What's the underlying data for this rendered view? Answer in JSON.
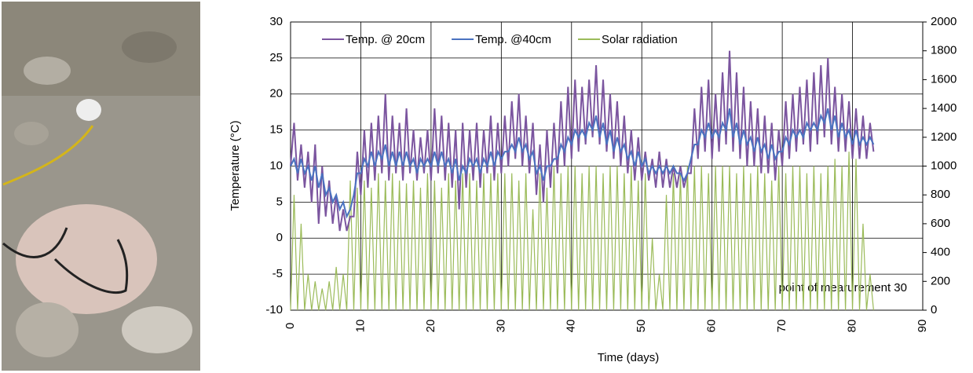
{
  "chart_data": {
    "type": "line",
    "xlabel": "Time (days)",
    "ylabel": "Temperature (°C)",
    "annotation": "point of mearurement 30",
    "xlim": [
      0,
      90
    ],
    "xticks": [
      0,
      10,
      20,
      30,
      40,
      50,
      60,
      70,
      80,
      90
    ],
    "ylim": [
      -10,
      30
    ],
    "yticks": [
      -10,
      -5,
      0,
      5,
      10,
      15,
      20,
      25,
      30
    ],
    "y2lim": [
      0,
      2000
    ],
    "y2ticks": [
      0,
      200,
      400,
      600,
      800,
      1000,
      1200,
      1400,
      1600,
      1800,
      2000
    ],
    "grid": true,
    "legend": "upper left",
    "x": [
      0,
      0.5,
      1,
      1.5,
      2,
      2.5,
      3,
      3.5,
      4,
      4.5,
      5,
      5.5,
      6,
      6.5,
      7,
      7.5,
      8,
      8.5,
      9,
      9.5,
      10,
      10.5,
      11,
      11.5,
      12,
      12.5,
      13,
      13.5,
      14,
      14.5,
      15,
      15.5,
      16,
      16.5,
      17,
      17.5,
      18,
      18.5,
      19,
      19.5,
      20,
      20.5,
      21,
      21.5,
      22,
      22.5,
      23,
      23.5,
      24,
      24.5,
      25,
      25.5,
      26,
      26.5,
      27,
      27.5,
      28,
      28.5,
      29,
      29.5,
      30,
      30.5,
      31,
      31.5,
      32,
      32.5,
      33,
      33.5,
      34,
      34.5,
      35,
      35.5,
      36,
      36.5,
      37,
      37.5,
      38,
      38.5,
      39,
      39.5,
      40,
      40.5,
      41,
      41.5,
      42,
      42.5,
      43,
      43.5,
      44,
      44.5,
      45,
      45.5,
      46,
      46.5,
      47,
      47.5,
      48,
      48.5,
      49,
      49.5,
      50,
      50.5,
      51,
      51.5,
      52,
      52.5,
      53,
      53.5,
      54,
      54.5,
      55,
      55.5,
      56,
      56.5,
      57,
      57.5,
      58,
      58.5,
      59,
      59.5,
      60,
      60.5,
      61,
      61.5,
      62,
      62.5,
      63,
      63.5,
      64,
      64.5,
      65,
      65.5,
      66,
      66.5,
      67,
      67.5,
      68,
      68.5,
      69,
      69.5,
      70,
      70.5,
      71,
      71.5,
      72,
      72.5,
      73,
      73.5,
      74,
      74.5,
      75,
      75.5,
      76,
      76.5,
      77,
      77.5,
      78,
      78.5,
      79,
      79.5,
      80,
      80.5,
      81,
      81.5,
      82,
      82.5,
      83
    ],
    "series": [
      {
        "name": "Temp. @ 20cm",
        "color": "#7b559f",
        "axis": "y",
        "values": [
          10,
          16,
          8,
          13,
          7,
          12,
          5,
          13,
          2,
          10,
          3,
          8,
          2,
          6,
          1,
          4,
          1,
          3,
          3,
          12,
          6,
          15,
          7,
          16,
          8,
          17,
          9,
          20,
          8,
          17,
          9,
          16,
          8,
          18,
          9,
          15,
          8,
          14,
          9,
          15,
          8,
          18,
          9,
          17,
          8,
          16,
          7,
          15,
          4,
          16,
          7,
          15,
          8,
          16,
          7,
          15,
          9,
          17,
          8,
          16,
          9,
          17,
          10,
          19,
          11,
          20,
          10,
          17,
          9,
          16,
          6,
          13,
          5,
          15,
          7,
          16,
          9,
          19,
          10,
          21,
          11,
          22,
          12,
          21,
          13,
          22,
          14,
          24,
          13,
          22,
          12,
          20,
          11,
          19,
          10,
          17,
          9,
          15,
          8,
          14,
          8,
          12,
          8,
          11,
          7,
          12,
          7,
          11,
          7,
          10,
          7,
          10,
          7,
          9,
          9,
          18,
          11,
          21,
          12,
          22,
          11,
          20,
          12,
          23,
          13,
          26,
          12,
          23,
          11,
          21,
          10,
          19,
          10,
          18,
          9,
          17,
          9,
          16,
          8,
          15,
          10,
          19,
          11,
          20,
          12,
          21,
          13,
          22,
          12,
          23,
          13,
          24,
          14,
          25,
          13,
          21,
          12,
          20,
          12,
          19,
          11,
          18,
          11,
          17,
          11,
          16,
          12
        ]
      },
      {
        "name": "Temp. @40cm",
        "color": "#4a72c0",
        "axis": "y",
        "values": [
          10,
          11,
          9,
          11,
          9,
          10,
          8,
          10,
          7,
          9,
          6,
          7,
          5,
          6,
          4,
          5,
          3,
          4,
          6,
          9,
          9,
          11,
          10,
          12,
          10,
          12,
          11,
          13,
          10,
          12,
          10,
          12,
          10,
          12,
          10,
          11,
          9,
          11,
          10,
          11,
          10,
          12,
          10,
          12,
          10,
          11,
          9,
          11,
          8,
          10,
          9,
          11,
          10,
          11,
          9,
          11,
          10,
          12,
          10,
          12,
          11,
          12,
          12,
          13,
          12,
          14,
          12,
          13,
          11,
          12,
          9,
          10,
          8,
          10,
          10,
          11,
          11,
          13,
          12,
          14,
          13,
          15,
          14,
          15,
          14,
          16,
          15,
          17,
          14,
          16,
          13,
          15,
          12,
          14,
          12,
          13,
          11,
          12,
          10,
          12,
          10,
          11,
          9,
          10,
          9,
          10,
          9,
          10,
          9,
          10,
          9,
          9,
          8,
          9,
          11,
          13,
          13,
          15,
          14,
          16,
          14,
          15,
          14,
          16,
          15,
          18,
          14,
          16,
          13,
          15,
          13,
          14,
          12,
          14,
          12,
          13,
          11,
          13,
          11,
          12,
          12,
          14,
          13,
          15,
          14,
          15,
          14,
          16,
          15,
          16,
          15,
          17,
          16,
          18,
          15,
          17,
          14,
          16,
          14,
          15,
          13,
          15,
          13,
          14,
          13,
          14,
          13
        ]
      },
      {
        "name": "Solar radiation",
        "color": "#9bbb59",
        "axis": "y2",
        "values": [
          0,
          800,
          0,
          600,
          0,
          250,
          0,
          200,
          0,
          150,
          0,
          200,
          0,
          300,
          0,
          250,
          0,
          900,
          0,
          850,
          0,
          900,
          0,
          850,
          0,
          950,
          0,
          900,
          0,
          950,
          0,
          900,
          0,
          880,
          0,
          900,
          0,
          850,
          0,
          950,
          0,
          900,
          0,
          850,
          0,
          950,
          0,
          900,
          0,
          950,
          0,
          950,
          0,
          900,
          0,
          950,
          0,
          950,
          0,
          950,
          0,
          950,
          0,
          950,
          0,
          900,
          0,
          950,
          0,
          700,
          0,
          950,
          0,
          850,
          0,
          1000,
          0,
          950,
          0,
          1000,
          0,
          1000,
          0,
          950,
          0,
          1000,
          0,
          1000,
          0,
          950,
          0,
          1000,
          0,
          1000,
          0,
          950,
          0,
          1000,
          0,
          900,
          0,
          950,
          0,
          500,
          0,
          250,
          0,
          800,
          0,
          950,
          0,
          950,
          0,
          1000,
          0,
          1000,
          0,
          1000,
          0,
          950,
          0,
          1000,
          0,
          1000,
          0,
          1000,
          0,
          950,
          0,
          1000,
          0,
          950,
          0,
          1000,
          0,
          950,
          0,
          900,
          0,
          1000,
          0,
          950,
          0,
          1000,
          0,
          1000,
          0,
          950,
          0,
          1000,
          0,
          950,
          0,
          1000,
          0,
          1050,
          0,
          1000,
          0,
          1100,
          0,
          1050,
          0,
          600,
          0,
          250,
          0
        ]
      }
    ]
  }
}
